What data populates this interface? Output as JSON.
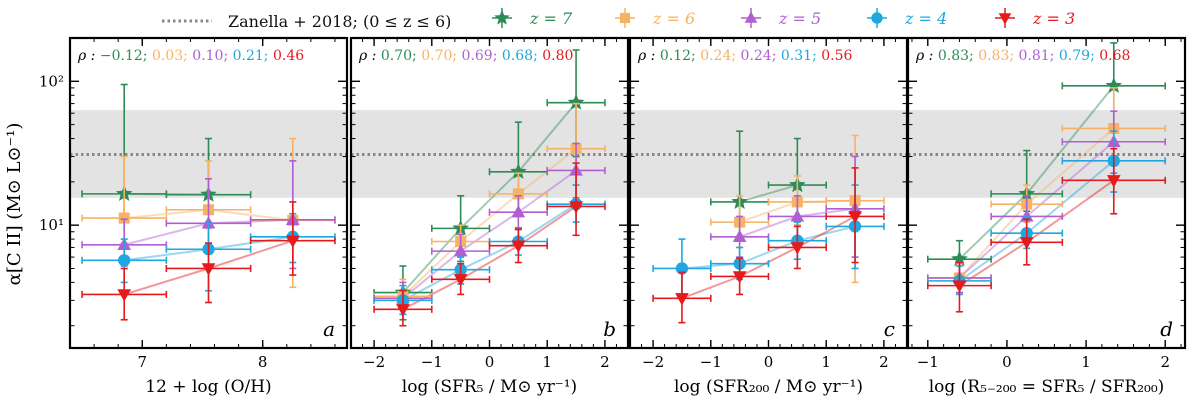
{
  "legend": {
    "ref_label": "Zanella + 2018; (0 ≤ z ≤ 6)",
    "series_labels": [
      "z = 7",
      "z = 6",
      "z = 5",
      "z = 4",
      "z = 3"
    ]
  },
  "chart_data": {
    "type": "scatter",
    "ylabel": "α[C II] (M⊙ L⊙⁻¹)",
    "yscale": "log",
    "ylim": [
      1.4,
      200
    ],
    "y_ticks": [
      10,
      100
    ],
    "y_tick_labels": [
      "10¹",
      "10²"
    ],
    "reference": {
      "name": "Zanella + 2018; (0 ≤ z ≤ 6)",
      "value": 31,
      "band": [
        15.5,
        63
      ]
    },
    "series_styles": [
      {
        "z": 7,
        "color": "#2e8b57",
        "marker": "star"
      },
      {
        "z": 6,
        "color": "#f7b266",
        "marker": "square"
      },
      {
        "z": 5,
        "color": "#b05fd0",
        "marker": "triangle-up"
      },
      {
        "z": 4,
        "color": "#1ea7e0",
        "marker": "circle"
      },
      {
        "z": 3,
        "color": "#e41a1c",
        "marker": "triangle-down"
      }
    ],
    "panels": [
      {
        "letter": "a",
        "xlabel": "12 + log (O/H)",
        "xlim": [
          6.4,
          8.7
        ],
        "x_ticks": [
          7,
          8
        ],
        "rho_prefix": "ρ :",
        "rho": [
          "−0.12;",
          "0.03;",
          "0.10;",
          "0.21;",
          "0.46"
        ],
        "series": [
          {
            "z": 7,
            "points": [
              {
                "x": 6.85,
                "y": 16.5,
                "xe": 0.35,
                "ylo": 11,
                "yhi": 95
              },
              {
                "x": 7.55,
                "y": 16.3,
                "xe": 0.35,
                "ylo": 12,
                "yhi": 40
              }
            ]
          },
          {
            "z": 6,
            "points": [
              {
                "x": 6.85,
                "y": 11.2,
                "xe": 0.35,
                "ylo": 7.5,
                "yhi": 30
              },
              {
                "x": 7.55,
                "y": 12.8,
                "xe": 0.35,
                "ylo": 9.5,
                "yhi": 28
              },
              {
                "x": 8.25,
                "y": 10.8,
                "xe": 0.35,
                "ylo": 3.7,
                "yhi": 40
              }
            ]
          },
          {
            "z": 5,
            "points": [
              {
                "x": 6.85,
                "y": 7.3,
                "xe": 0.35,
                "ylo": 5.2,
                "yhi": 11
              },
              {
                "x": 7.55,
                "y": 10.3,
                "xe": 0.35,
                "ylo": 7.5,
                "yhi": 21
              },
              {
                "x": 8.25,
                "y": 10.9,
                "xe": 0.35,
                "ylo": 5,
                "yhi": 28
              }
            ]
          },
          {
            "z": 4,
            "points": [
              {
                "x": 6.85,
                "y": 5.7,
                "xe": 0.35,
                "ylo": 4,
                "yhi": 8
              },
              {
                "x": 7.55,
                "y": 6.8,
                "xe": 0.35,
                "ylo": 3.5,
                "yhi": 10.5
              },
              {
                "x": 8.25,
                "y": 8.3,
                "xe": 0.35,
                "ylo": 5.5,
                "yhi": 12
              }
            ]
          },
          {
            "z": 3,
            "points": [
              {
                "x": 6.85,
                "y": 3.3,
                "xe": 0.35,
                "ylo": 2.2,
                "yhi": 5
              },
              {
                "x": 7.55,
                "y": 5,
                "xe": 0.35,
                "ylo": 2.9,
                "yhi": 7.5
              },
              {
                "x": 8.25,
                "y": 7.8,
                "xe": 0.35,
                "ylo": 4.5,
                "yhi": 14.5
              }
            ]
          }
        ]
      },
      {
        "letter": "b",
        "xlabel": "log (SFR₅ / M⊙ yr⁻¹)",
        "xlim": [
          -2.4,
          2.4
        ],
        "x_ticks": [
          -2,
          -1,
          0,
          1,
          2
        ],
        "rho_prefix": "ρ :",
        "rho": [
          "0.70;",
          "0.70;",
          "0.69;",
          "0.68;",
          "0.80"
        ],
        "series": [
          {
            "z": 7,
            "points": [
              {
                "x": -1.5,
                "y": 3.4,
                "xe": 0.5,
                "ylo": 2.2,
                "yhi": 5.2
              },
              {
                "x": -0.5,
                "y": 9.5,
                "xe": 0.5,
                "ylo": 5.6,
                "yhi": 16
              },
              {
                "x": 0.5,
                "y": 23.5,
                "xe": 0.5,
                "ylo": 11.5,
                "yhi": 52
              },
              {
                "x": 1.5,
                "y": 71,
                "xe": 0.5,
                "ylo": 30,
                "yhi": 165
              }
            ]
          },
          {
            "z": 6,
            "points": [
              {
                "x": -1.5,
                "y": 3.2,
                "xe": 0.5,
                "ylo": 2.6,
                "yhi": 4.2
              },
              {
                "x": -0.5,
                "y": 7.7,
                "xe": 0.5,
                "ylo": 6,
                "yhi": 10
              },
              {
                "x": 0.5,
                "y": 16.5,
                "xe": 0.5,
                "ylo": 12,
                "yhi": 23
              },
              {
                "x": 1.5,
                "y": 34,
                "xe": 0.5,
                "ylo": 15,
                "yhi": 70
              }
            ]
          },
          {
            "z": 5,
            "points": [
              {
                "x": -1.5,
                "y": 3.1,
                "xe": 0.5,
                "ylo": 2.4,
                "yhi": 4
              },
              {
                "x": -0.5,
                "y": 6.6,
                "xe": 0.5,
                "ylo": 5.2,
                "yhi": 8.6
              },
              {
                "x": 0.5,
                "y": 12.3,
                "xe": 0.5,
                "ylo": 9.3,
                "yhi": 16
              },
              {
                "x": 1.5,
                "y": 24,
                "xe": 0.5,
                "ylo": 15.5,
                "yhi": 37
              }
            ]
          },
          {
            "z": 4,
            "points": [
              {
                "x": -1.5,
                "y": 3,
                "xe": 0.5,
                "ylo": 2.4,
                "yhi": 3.8
              },
              {
                "x": -0.5,
                "y": 4.9,
                "xe": 0.5,
                "ylo": 3.9,
                "yhi": 6
              },
              {
                "x": 0.5,
                "y": 7.7,
                "xe": 0.5,
                "ylo": 6.2,
                "yhi": 9.6
              },
              {
                "x": 1.5,
                "y": 14,
                "xe": 0.5,
                "ylo": 10.5,
                "yhi": 19
              }
            ]
          },
          {
            "z": 3,
            "points": [
              {
                "x": -1.5,
                "y": 2.6,
                "xe": 0.5,
                "ylo": 2,
                "yhi": 3.5
              },
              {
                "x": -0.5,
                "y": 4.2,
                "xe": 0.5,
                "ylo": 3.3,
                "yhi": 5.4
              },
              {
                "x": 0.5,
                "y": 7.2,
                "xe": 0.5,
                "ylo": 5.5,
                "yhi": 9.4
              },
              {
                "x": 1.5,
                "y": 13.5,
                "xe": 0.5,
                "ylo": 8.5,
                "yhi": 27
              }
            ]
          }
        ]
      },
      {
        "letter": "c",
        "xlabel": "log (SFR₂₀₀ / M⊙ yr⁻¹)",
        "xlim": [
          -2.4,
          2.4
        ],
        "x_ticks": [
          -2,
          -1,
          0,
          1,
          2
        ],
        "rho_prefix": "ρ :",
        "rho": [
          "0.12;",
          "0.24;",
          "0.24;",
          "0.31;",
          "0.56"
        ],
        "series": [
          {
            "z": 7,
            "points": [
              {
                "x": -0.5,
                "y": 14.5,
                "xe": 0.5,
                "ylo": 8,
                "yhi": 45
              },
              {
                "x": 0.5,
                "y": 19,
                "xe": 0.5,
                "ylo": 10,
                "yhi": 40
              }
            ]
          },
          {
            "z": 6,
            "points": [
              {
                "x": -0.5,
                "y": 10.5,
                "xe": 0.5,
                "ylo": 7,
                "yhi": 16
              },
              {
                "x": 0.5,
                "y": 14.5,
                "xe": 0.5,
                "ylo": 10,
                "yhi": 22
              },
              {
                "x": 1.5,
                "y": 14.8,
                "xe": 0.5,
                "ylo": 4,
                "yhi": 42
              }
            ]
          },
          {
            "z": 5,
            "points": [
              {
                "x": -0.5,
                "y": 8.3,
                "xe": 0.5,
                "ylo": 6,
                "yhi": 11.5
              },
              {
                "x": 0.5,
                "y": 11.5,
                "xe": 0.5,
                "ylo": 8.3,
                "yhi": 16
              },
              {
                "x": 1.5,
                "y": 13,
                "xe": 0.5,
                "ylo": 6,
                "yhi": 30
              }
            ]
          },
          {
            "z": 4,
            "points": [
              {
                "x": -1.5,
                "y": 5,
                "xe": 0.5,
                "ylo": 3.2,
                "yhi": 8
              },
              {
                "x": -0.5,
                "y": 5.4,
                "xe": 0.5,
                "ylo": 4.2,
                "yhi": 7
              },
              {
                "x": 0.5,
                "y": 7.8,
                "xe": 0.5,
                "ylo": 5.8,
                "yhi": 10.5
              },
              {
                "x": 1.5,
                "y": 9.8,
                "xe": 0.5,
                "ylo": 5,
                "yhi": 19
              }
            ]
          },
          {
            "z": 3,
            "points": [
              {
                "x": -1.5,
                "y": 3.1,
                "xe": 0.5,
                "ylo": 2.1,
                "yhi": 4.7
              },
              {
                "x": -0.5,
                "y": 4.4,
                "xe": 0.5,
                "ylo": 3.3,
                "yhi": 5.9
              },
              {
                "x": 0.5,
                "y": 7,
                "xe": 0.5,
                "ylo": 5,
                "yhi": 9.8
              },
              {
                "x": 1.5,
                "y": 11.5,
                "xe": 0.5,
                "ylo": 5.5,
                "yhi": 25
              }
            ]
          }
        ]
      },
      {
        "letter": "d",
        "xlabel": "log (R₅₋₂₀₀ = SFR₅ / SFR₂₀₀)",
        "xlim": [
          -1.25,
          2.25
        ],
        "x_ticks": [
          -1,
          0,
          1,
          2
        ],
        "rho_prefix": "ρ :",
        "rho": [
          "0.83;",
          "0.83;",
          "0.81;",
          "0.79;",
          "0.68"
        ],
        "series": [
          {
            "z": 7,
            "points": [
              {
                "x": -0.6,
                "y": 5.8,
                "xe": 0.4,
                "ylo": 4.3,
                "yhi": 7.8
              },
              {
                "x": 0.25,
                "y": 16.5,
                "xe": 0.45,
                "ylo": 12.5,
                "yhi": 33
              },
              {
                "x": 1.35,
                "y": 93,
                "xe": 0.65,
                "ylo": 50,
                "yhi": 185
              }
            ]
          },
          {
            "z": 6,
            "points": [
              {
                "x": -0.6,
                "y": 4.3,
                "xe": 0.4,
                "ylo": 3.4,
                "yhi": 5.4
              },
              {
                "x": 0.25,
                "y": 14,
                "xe": 0.45,
                "ylo": 10.5,
                "yhi": 19
              },
              {
                "x": 1.35,
                "y": 47,
                "xe": 0.65,
                "ylo": 26,
                "yhi": 90
              }
            ]
          },
          {
            "z": 5,
            "points": [
              {
                "x": -0.6,
                "y": 4.3,
                "xe": 0.4,
                "ylo": 3.4,
                "yhi": 5.5
              },
              {
                "x": 0.25,
                "y": 11.5,
                "xe": 0.45,
                "ylo": 8.5,
                "yhi": 16
              },
              {
                "x": 1.35,
                "y": 38,
                "xe": 0.65,
                "ylo": 23,
                "yhi": 62
              }
            ]
          },
          {
            "z": 4,
            "points": [
              {
                "x": -0.6,
                "y": 4.1,
                "xe": 0.4,
                "ylo": 3.3,
                "yhi": 5.2
              },
              {
                "x": 0.25,
                "y": 8.8,
                "xe": 0.45,
                "ylo": 6.9,
                "yhi": 11.5
              },
              {
                "x": 1.35,
                "y": 28,
                "xe": 0.65,
                "ylo": 17,
                "yhi": 45
              }
            ]
          },
          {
            "z": 3,
            "points": [
              {
                "x": -0.6,
                "y": 3.8,
                "xe": 0.4,
                "ylo": 2.5,
                "yhi": 5.5
              },
              {
                "x": 0.25,
                "y": 7.6,
                "xe": 0.45,
                "ylo": 5.3,
                "yhi": 11
              },
              {
                "x": 1.35,
                "y": 20.5,
                "xe": 0.65,
                "ylo": 12,
                "yhi": 34
              }
            ]
          }
        ]
      }
    ]
  }
}
